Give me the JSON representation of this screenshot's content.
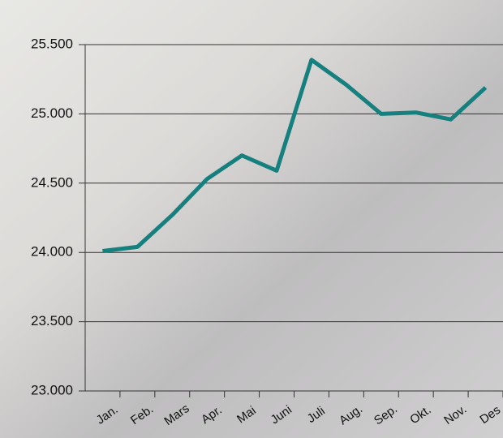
{
  "chart_data": {
    "type": "line",
    "categories": [
      "Jan.",
      "Feb.",
      "Mars",
      "Apr.",
      "Mai",
      "Juni",
      "Juli",
      "Aug.",
      "Sep.",
      "Okt.",
      "Nov.",
      "Des"
    ],
    "series": [
      {
        "color": "#16807f",
        "values": [
          24010,
          24040,
          24270,
          24530,
          24700,
          24590,
          25390,
          25210,
          25000,
          25010,
          24960,
          25190
        ]
      }
    ],
    "ylim": [
      23000,
      25500
    ],
    "yticks": [
      {
        "value": 23000,
        "label": "23.000"
      },
      {
        "value": 23500,
        "label": "23.500"
      },
      {
        "value": 24000,
        "label": "24.000"
      },
      {
        "value": 24500,
        "label": "24.500"
      },
      {
        "value": 25000,
        "label": "25.000"
      },
      {
        "value": 25500,
        "label": "25.500"
      }
    ],
    "grid": true
  }
}
